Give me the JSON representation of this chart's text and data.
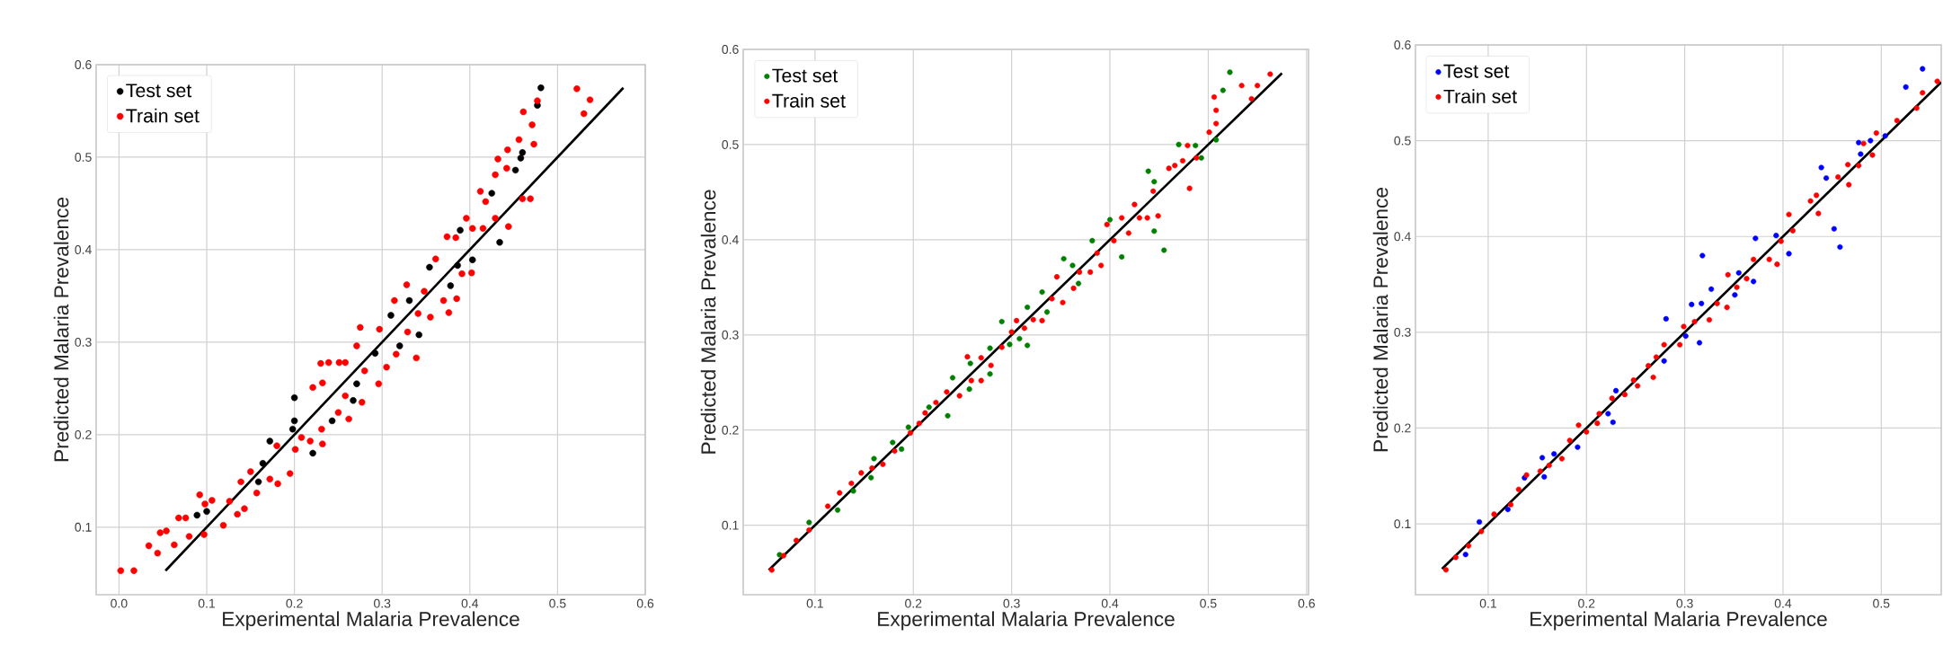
{
  "chart_data": [
    {
      "type": "scatter",
      "xlabel": "Experimental Malaria Prevalence",
      "ylabel": "Predicted Malaria Prevalence",
      "xlim": [
        -0.026,
        0.6
      ],
      "ylim": [
        0.027,
        0.6
      ],
      "xticks": [
        {
          "value": 0,
          "label": "0.0"
        },
        0.1,
        0.2,
        0.3,
        0.4,
        0.5,
        0.6
      ],
      "yticks": [
        0.1,
        0.2,
        0.3,
        0.4,
        0.5,
        0.6
      ],
      "grid": true,
      "legend": "top left",
      "series": [
        {
          "name": "Test set",
          "color": "#000000",
          "marker": "circle",
          "x": [
            0.481,
            0.477,
            0.46,
            0.458,
            0.452,
            0.425,
            0.434,
            0.389,
            0.403,
            0.386,
            0.378,
            0.354,
            0.331,
            0.31,
            0.342,
            0.32,
            0.292,
            0.271,
            0.267,
            0.243,
            0.2,
            0.2,
            0.198,
            0.221,
            0.172,
            0.164,
            0.159,
            0.089,
            0.1
          ],
          "values": [
            0.575,
            0.556,
            0.505,
            0.499,
            0.486,
            0.461,
            0.408,
            0.421,
            0.389,
            0.383,
            0.361,
            0.381,
            0.345,
            0.329,
            0.308,
            0.296,
            0.288,
            0.255,
            0.237,
            0.215,
            0.24,
            0.215,
            0.206,
            0.18,
            0.193,
            0.169,
            0.149,
            0.113,
            0.117
          ]
        },
        {
          "name": "Train set",
          "color": "#ff0000",
          "marker": "circle",
          "x": [
            0.002,
            0.017,
            0.034,
            0.044,
            0.047,
            0.054,
            0.063,
            0.068,
            0.076,
            0.08,
            0.092,
            0.097,
            0.098,
            0.106,
            0.119,
            0.126,
            0.135,
            0.143,
            0.139,
            0.15,
            0.157,
            0.172,
            0.181,
            0.18,
            0.195,
            0.201,
            0.208,
            0.221,
            0.218,
            0.232,
            0.231,
            0.23,
            0.239,
            0.232,
            0.25,
            0.251,
            0.262,
            0.258,
            0.258,
            0.271,
            0.277,
            0.275,
            0.28,
            0.296,
            0.297,
            0.305,
            0.314,
            0.316,
            0.328,
            0.329,
            0.341,
            0.339,
            0.348,
            0.355,
            0.361,
            0.37,
            0.374,
            0.376,
            0.385,
            0.384,
            0.391,
            0.396,
            0.402,
            0.403,
            0.412,
            0.415,
            0.418,
            0.429,
            0.432,
            0.429,
            0.442,
            0.444,
            0.443,
            0.456,
            0.46,
            0.461,
            0.469,
            0.471,
            0.473,
            0.477,
            0.522,
            0.53,
            0.537
          ],
          "values": [
            0.053,
            0.053,
            0.08,
            0.072,
            0.094,
            0.096,
            0.081,
            0.11,
            0.11,
            0.09,
            0.135,
            0.092,
            0.125,
            0.129,
            0.102,
            0.128,
            0.114,
            0.12,
            0.149,
            0.16,
            0.137,
            0.152,
            0.147,
            0.188,
            0.158,
            0.184,
            0.197,
            0.251,
            0.193,
            0.19,
            0.206,
            0.277,
            0.278,
            0.256,
            0.224,
            0.278,
            0.217,
            0.242,
            0.278,
            0.296,
            0.235,
            0.316,
            0.269,
            0.255,
            0.314,
            0.273,
            0.345,
            0.287,
            0.362,
            0.311,
            0.331,
            0.283,
            0.355,
            0.327,
            0.39,
            0.345,
            0.414,
            0.332,
            0.347,
            0.413,
            0.374,
            0.434,
            0.375,
            0.423,
            0.463,
            0.423,
            0.452,
            0.434,
            0.498,
            0.481,
            0.488,
            0.425,
            0.508,
            0.519,
            0.455,
            0.549,
            0.455,
            0.535,
            0.514,
            0.561,
            0.574,
            0.547,
            0.562
          ]
        },
        {
          "type": "line",
          "color": "#000000",
          "line_style": "solid",
          "marker": "none",
          "x": [
            0.053,
            0.575
          ],
          "values": [
            0.053,
            0.575
          ]
        }
      ]
    },
    {
      "type": "scatter",
      "xlabel": "Experimental Malaria Prevalence",
      "ylabel": "Predicted Malaria Prevalence",
      "xlim": [
        0.027,
        0.602
      ],
      "ylim": [
        0.027,
        0.6
      ],
      "xticks": [
        0.1,
        0.2,
        0.3,
        0.4,
        0.5,
        0.6
      ],
      "yticks": [
        0.1,
        0.2,
        0.3,
        0.4,
        0.5,
        0.6
      ],
      "grid": true,
      "legend": "top left",
      "series": [
        {
          "name": "Test set",
          "color": "#008000",
          "marker": "circle",
          "x": [
            0.522,
            0.515,
            0.508,
            0.493,
            0.487,
            0.47,
            0.439,
            0.445,
            0.445,
            0.455,
            0.412,
            0.4,
            0.382,
            0.353,
            0.362,
            0.368,
            0.331,
            0.336,
            0.316,
            0.308,
            0.316,
            0.29,
            0.298,
            0.278,
            0.278,
            0.258,
            0.257,
            0.24,
            0.235,
            0.216,
            0.195,
            0.188,
            0.179,
            0.16,
            0.157,
            0.139,
            0.123,
            0.094,
            0.064
          ],
          "values": [
            0.576,
            0.557,
            0.505,
            0.486,
            0.499,
            0.5,
            0.472,
            0.461,
            0.409,
            0.389,
            0.382,
            0.421,
            0.399,
            0.38,
            0.373,
            0.354,
            0.345,
            0.324,
            0.329,
            0.296,
            0.289,
            0.314,
            0.29,
            0.286,
            0.259,
            0.27,
            0.243,
            0.255,
            0.215,
            0.224,
            0.203,
            0.18,
            0.187,
            0.17,
            0.15,
            0.136,
            0.116,
            0.103,
            0.069
          ]
        },
        {
          "name": "Train set",
          "color": "#ff0000",
          "marker": "circle",
          "x": [
            0.056,
            0.068,
            0.081,
            0.094,
            0.113,
            0.125,
            0.137,
            0.147,
            0.158,
            0.169,
            0.181,
            0.197,
            0.206,
            0.212,
            0.223,
            0.234,
            0.247,
            0.255,
            0.259,
            0.269,
            0.269,
            0.279,
            0.29,
            0.3,
            0.305,
            0.313,
            0.322,
            0.331,
            0.341,
            0.346,
            0.352,
            0.363,
            0.369,
            0.38,
            0.391,
            0.387,
            0.397,
            0.404,
            0.412,
            0.419,
            0.425,
            0.43,
            0.438,
            0.444,
            0.449,
            0.46,
            0.466,
            0.474,
            0.479,
            0.481,
            0.488,
            0.501,
            0.506,
            0.508,
            0.508,
            0.534,
            0.55,
            0.544,
            0.563
          ],
          "values": [
            0.053,
            0.068,
            0.084,
            0.095,
            0.12,
            0.134,
            0.144,
            0.155,
            0.16,
            0.164,
            0.178,
            0.197,
            0.207,
            0.218,
            0.229,
            0.24,
            0.236,
            0.277,
            0.252,
            0.252,
            0.276,
            0.268,
            0.287,
            0.303,
            0.315,
            0.307,
            0.316,
            0.315,
            0.338,
            0.361,
            0.334,
            0.349,
            0.366,
            0.366,
            0.373,
            0.386,
            0.416,
            0.399,
            0.423,
            0.407,
            0.437,
            0.423,
            0.423,
            0.451,
            0.425,
            0.475,
            0.478,
            0.483,
            0.499,
            0.454,
            0.486,
            0.513,
            0.55,
            0.522,
            0.536,
            0.562,
            0.562,
            0.548,
            0.574
          ]
        },
        {
          "type": "line",
          "color": "#000000",
          "line_style": "solid",
          "marker": "none",
          "x": [
            0.053,
            0.575
          ],
          "values": [
            0.053,
            0.575
          ]
        }
      ]
    },
    {
      "type": "scatter",
      "xlabel": "Experimental Malaria Prevalence",
      "ylabel": "Predicted Malaria Prevalence",
      "xlim": [
        0.026,
        0.561
      ],
      "ylim": [
        0.026,
        0.6
      ],
      "xticks": [
        0.1,
        0.2,
        0.3,
        0.4,
        0.5
      ],
      "yticks": [
        0.1,
        0.2,
        0.3,
        0.4,
        0.5,
        0.6
      ],
      "grid": true,
      "legend": "top left",
      "series": [
        {
          "name": "Test set",
          "color": "#0000ff",
          "marker": "circle",
          "x": [
            0.542,
            0.525,
            0.489,
            0.477,
            0.479,
            0.504,
            0.439,
            0.444,
            0.452,
            0.458,
            0.406,
            0.393,
            0.372,
            0.318,
            0.37,
            0.355,
            0.327,
            0.351,
            0.307,
            0.317,
            0.315,
            0.281,
            0.301,
            0.279,
            0.23,
            0.222,
            0.227,
            0.191,
            0.155,
            0.167,
            0.157,
            0.137,
            0.12,
            0.091,
            0.077
          ],
          "values": [
            0.575,
            0.556,
            0.5,
            0.498,
            0.486,
            0.505,
            0.472,
            0.461,
            0.408,
            0.389,
            0.382,
            0.401,
            0.398,
            0.38,
            0.353,
            0.362,
            0.345,
            0.339,
            0.329,
            0.33,
            0.289,
            0.314,
            0.296,
            0.27,
            0.239,
            0.215,
            0.206,
            0.18,
            0.169,
            0.173,
            0.149,
            0.148,
            0.115,
            0.102,
            0.068
          ]
        },
        {
          "name": "Train set",
          "color": "#ff0000",
          "marker": "circle",
          "x": [
            0.057,
            0.067,
            0.08,
            0.093,
            0.106,
            0.123,
            0.131,
            0.139,
            0.153,
            0.162,
            0.175,
            0.183,
            0.192,
            0.2,
            0.211,
            0.213,
            0.226,
            0.239,
            0.248,
            0.252,
            0.263,
            0.268,
            0.271,
            0.279,
            0.295,
            0.299,
            0.31,
            0.325,
            0.333,
            0.343,
            0.344,
            0.353,
            0.363,
            0.37,
            0.386,
            0.394,
            0.398,
            0.406,
            0.41,
            0.428,
            0.434,
            0.436,
            0.456,
            0.467,
            0.466,
            0.477,
            0.482,
            0.491,
            0.495,
            0.516,
            0.536,
            0.542,
            0.557
          ],
          "values": [
            0.052,
            0.065,
            0.077,
            0.092,
            0.11,
            0.12,
            0.136,
            0.151,
            0.155,
            0.161,
            0.168,
            0.187,
            0.203,
            0.196,
            0.205,
            0.215,
            0.231,
            0.235,
            0.25,
            0.244,
            0.265,
            0.253,
            0.274,
            0.287,
            0.287,
            0.306,
            0.311,
            0.313,
            0.33,
            0.326,
            0.36,
            0.347,
            0.356,
            0.376,
            0.376,
            0.371,
            0.395,
            0.423,
            0.406,
            0.437,
            0.443,
            0.424,
            0.462,
            0.454,
            0.475,
            0.474,
            0.497,
            0.485,
            0.508,
            0.521,
            0.534,
            0.55,
            0.562
          ]
        },
        {
          "type": "line",
          "color": "#000000",
          "line_style": "solid",
          "marker": "none",
          "x": [
            0.053,
            0.561
          ],
          "values": [
            0.053,
            0.561
          ]
        }
      ]
    }
  ]
}
